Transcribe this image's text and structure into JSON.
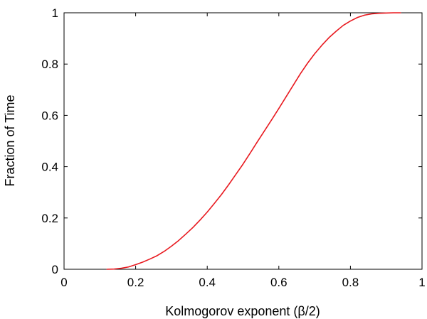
{
  "chart_data": {
    "type": "line",
    "title": "",
    "xlabel": "Kolmogorov exponent (β/2)",
    "ylabel": "Fraction of Time",
    "xlim": [
      0,
      1
    ],
    "ylim": [
      0,
      1
    ],
    "grid": false,
    "legend": "none",
    "x_ticks": [
      {
        "value": 0,
        "label": "0"
      },
      {
        "value": 0.2,
        "label": "0.2"
      },
      {
        "value": 0.4,
        "label": "0.4"
      },
      {
        "value": 0.6,
        "label": "0.6"
      },
      {
        "value": 0.8,
        "label": "0.8"
      },
      {
        "value": 1,
        "label": "1"
      }
    ],
    "y_ticks": [
      {
        "value": 0,
        "label": "0"
      },
      {
        "value": 0.2,
        "label": "0.2"
      },
      {
        "value": 0.4,
        "label": "0.4"
      },
      {
        "value": 0.6,
        "label": "0.6"
      },
      {
        "value": 0.8,
        "label": "0.8"
      },
      {
        "value": 1,
        "label": "1"
      }
    ],
    "series": [
      {
        "color": "#e8191f",
        "x": [
          0.12,
          0.14,
          0.16,
          0.18,
          0.2,
          0.22,
          0.24,
          0.26,
          0.28,
          0.3,
          0.32,
          0.34,
          0.36,
          0.38,
          0.4,
          0.42,
          0.44,
          0.46,
          0.48,
          0.5,
          0.52,
          0.54,
          0.56,
          0.58,
          0.6,
          0.62,
          0.64,
          0.66,
          0.68,
          0.7,
          0.72,
          0.74,
          0.76,
          0.78,
          0.8,
          0.82,
          0.84,
          0.86,
          0.88,
          0.9,
          0.92,
          0.94
        ],
        "y": [
          0.0,
          0.001,
          0.004,
          0.009,
          0.018,
          0.028,
          0.04,
          0.053,
          0.07,
          0.09,
          0.112,
          0.137,
          0.163,
          0.192,
          0.223,
          0.257,
          0.292,
          0.33,
          0.37,
          0.41,
          0.453,
          0.497,
          0.54,
          0.583,
          0.627,
          0.672,
          0.717,
          0.762,
          0.803,
          0.84,
          0.873,
          0.903,
          0.928,
          0.951,
          0.968,
          0.982,
          0.991,
          0.996,
          0.998,
          0.999,
          1.0,
          1.0
        ]
      }
    ]
  }
}
